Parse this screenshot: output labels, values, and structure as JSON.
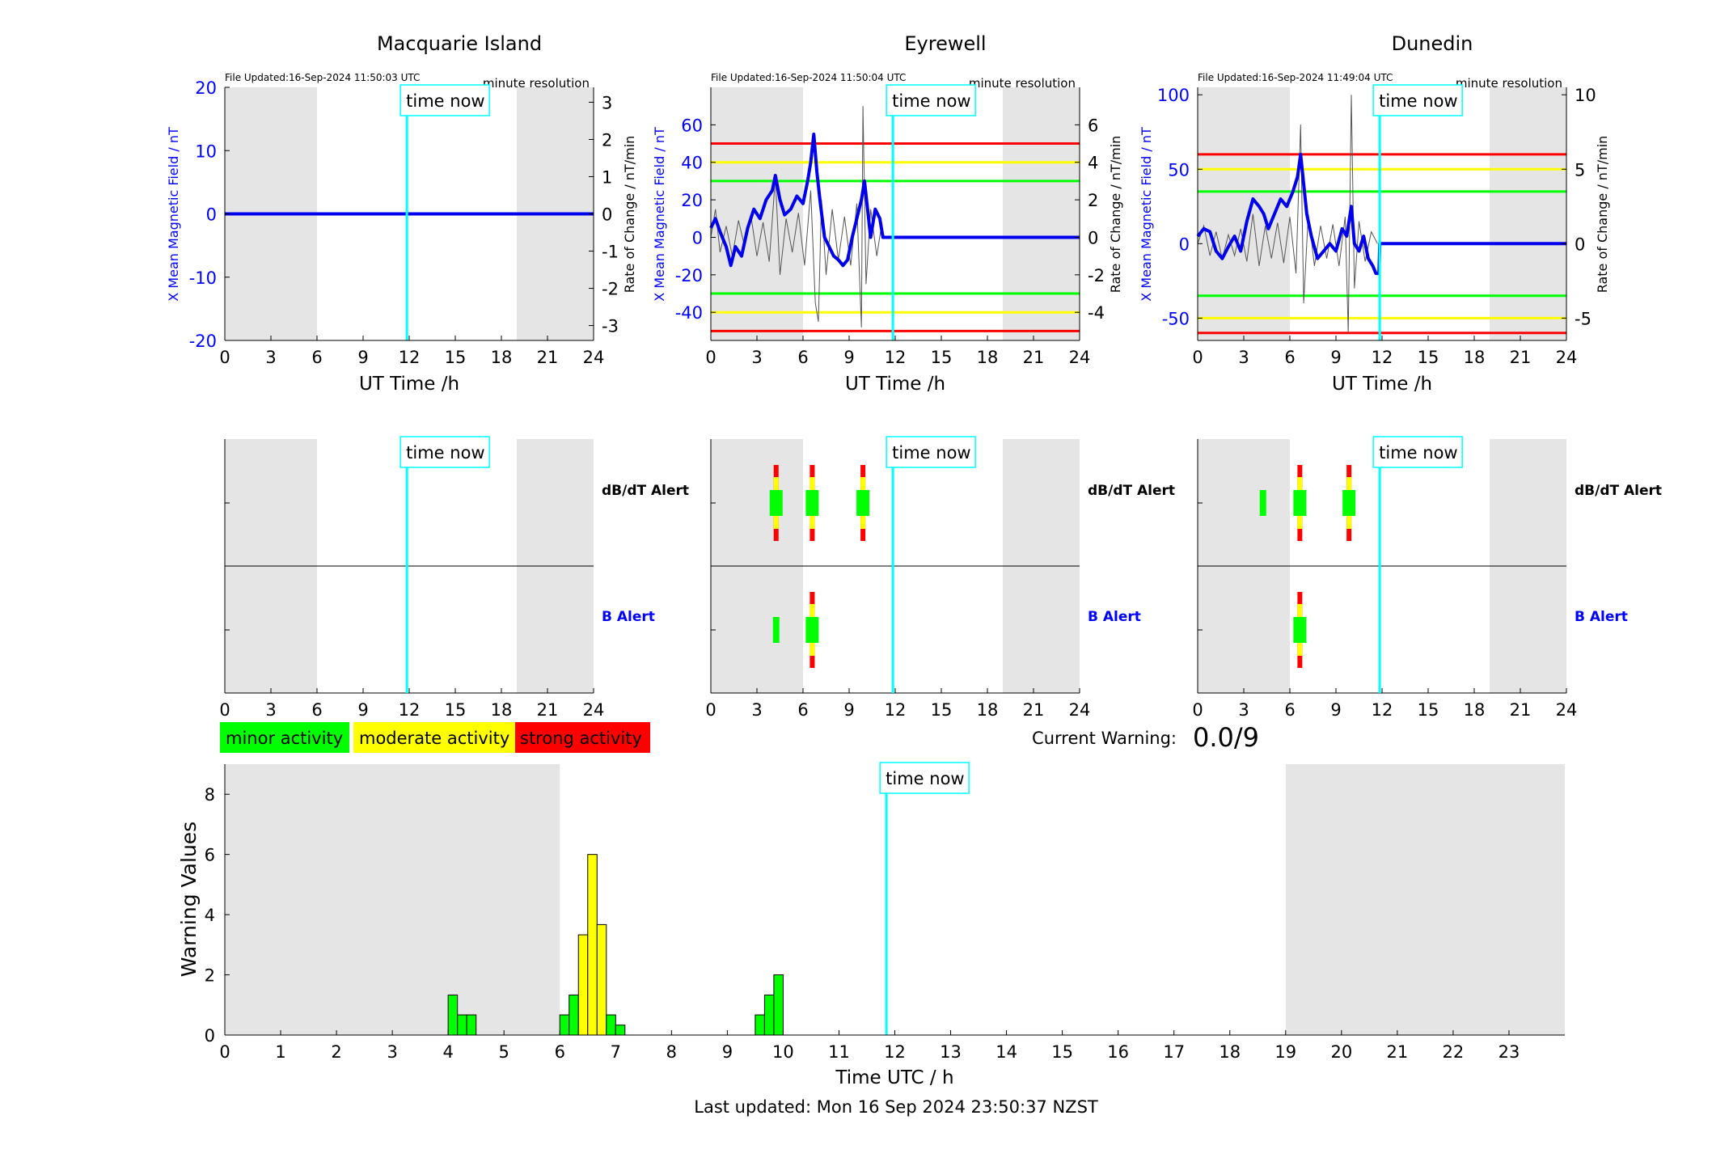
{
  "stations": [
    {
      "name": "Macquarie Island",
      "file_updated": "File Updated:16-Sep-2024 11:50:03 UTC",
      "resolution": "minute resolution",
      "ylim": [
        -20,
        20
      ],
      "yticks": [
        -20,
        -10,
        0,
        10,
        20
      ],
      "ylim_right": [
        -3.4,
        3.4
      ],
      "yticks_right": [
        -3,
        -2,
        -1,
        0,
        1,
        2,
        3
      ],
      "thresholds": [],
      "mean_field": [
        [
          0,
          0
        ],
        [
          24,
          0
        ]
      ],
      "rate_of_change": [],
      "dbdt_alerts": [],
      "b_alerts": []
    },
    {
      "name": "Eyrewell",
      "file_updated": "File Updated:16-Sep-2024 11:50:04 UTC",
      "resolution": "minute resolution",
      "ylim": [
        -55,
        80
      ],
      "yticks": [
        -40,
        -20,
        0,
        20,
        40,
        60
      ],
      "ylim_right": [
        -5.5,
        8
      ],
      "yticks_right": [
        -4,
        -2,
        0,
        2,
        4,
        6
      ],
      "thresholds": [
        {
          "value": 50,
          "color": "#ff0000"
        },
        {
          "value": 40,
          "color": "#ffff00"
        },
        {
          "value": 30,
          "color": "#00ff00"
        },
        {
          "value": -30,
          "color": "#00ff00"
        },
        {
          "value": -40,
          "color": "#ffff00"
        },
        {
          "value": -50,
          "color": "#ff0000"
        }
      ],
      "mean_field": [
        [
          0,
          5
        ],
        [
          0.3,
          10
        ],
        [
          0.6,
          3
        ],
        [
          1,
          -5
        ],
        [
          1.3,
          -15
        ],
        [
          1.6,
          -5
        ],
        [
          2,
          -10
        ],
        [
          2.4,
          5
        ],
        [
          2.8,
          15
        ],
        [
          3.2,
          10
        ],
        [
          3.6,
          20
        ],
        [
          4,
          25
        ],
        [
          4.2,
          33
        ],
        [
          4.5,
          20
        ],
        [
          4.8,
          12
        ],
        [
          5.2,
          15
        ],
        [
          5.6,
          22
        ],
        [
          6,
          18
        ],
        [
          6.3,
          30
        ],
        [
          6.5,
          40
        ],
        [
          6.7,
          55
        ],
        [
          6.9,
          35
        ],
        [
          7.1,
          20
        ],
        [
          7.4,
          0
        ],
        [
          7.7,
          -5
        ],
        [
          8,
          -10
        ],
        [
          8.3,
          -12
        ],
        [
          8.6,
          -15
        ],
        [
          8.9,
          -12
        ],
        [
          9.2,
          0
        ],
        [
          9.5,
          10
        ],
        [
          9.8,
          20
        ],
        [
          10,
          30
        ],
        [
          10.2,
          15
        ],
        [
          10.4,
          0
        ],
        [
          10.7,
          15
        ],
        [
          11,
          10
        ],
        [
          11.2,
          0
        ],
        [
          11.8,
          0
        ],
        [
          24,
          0
        ]
      ],
      "rate_of_change": [
        [
          0,
          0
        ],
        [
          0.3,
          1.5
        ],
        [
          0.6,
          -0.8
        ],
        [
          1,
          0.6
        ],
        [
          1.4,
          -1
        ],
        [
          1.8,
          0.9
        ],
        [
          2.2,
          -0.5
        ],
        [
          2.6,
          1.2
        ],
        [
          3,
          -1
        ],
        [
          3.4,
          0.8
        ],
        [
          3.8,
          -1.3
        ],
        [
          4.2,
          3.2
        ],
        [
          4.5,
          -2
        ],
        [
          4.9,
          1
        ],
        [
          5.3,
          -0.8
        ],
        [
          5.7,
          1.3
        ],
        [
          6.1,
          -1.5
        ],
        [
          6.5,
          2.5
        ],
        [
          6.8,
          -3.5
        ],
        [
          7,
          -4.5
        ],
        [
          7.2,
          2
        ],
        [
          7.5,
          -2
        ],
        [
          7.9,
          1.5
        ],
        [
          8.3,
          -1.2
        ],
        [
          8.7,
          1.1
        ],
        [
          9.1,
          -1.5
        ],
        [
          9.5,
          1.8
        ],
        [
          9.8,
          -4.8
        ],
        [
          9.9,
          7
        ],
        [
          10.1,
          -2.5
        ],
        [
          10.4,
          1.5
        ],
        [
          10.8,
          -1
        ],
        [
          11.1,
          0.6
        ],
        [
          11.3,
          0
        ]
      ],
      "dbdt_alerts": [
        {
          "t": 4.25,
          "level": "strong"
        },
        {
          "t": 6.6,
          "level": "strong"
        },
        {
          "t": 9.9,
          "level": "strong"
        }
      ],
      "b_alerts": [
        {
          "t": 4.25,
          "level": "minor"
        },
        {
          "t": 6.6,
          "level": "strong"
        }
      ]
    },
    {
      "name": "Dunedin",
      "file_updated": "File Updated:16-Sep-2024 11:49:04 UTC",
      "resolution": "minute resolution",
      "ylim": [
        -65,
        105
      ],
      "yticks": [
        -50,
        0,
        50,
        100
      ],
      "ylim_right": [
        -6.5,
        10.5
      ],
      "yticks_right": [
        -5,
        0,
        5,
        10
      ],
      "thresholds": [
        {
          "value": 60,
          "color": "#ff0000"
        },
        {
          "value": 50,
          "color": "#ffff00"
        },
        {
          "value": 35,
          "color": "#00ff00"
        },
        {
          "value": -35,
          "color": "#00ff00"
        },
        {
          "value": -50,
          "color": "#ffff00"
        },
        {
          "value": -60,
          "color": "#ff0000"
        }
      ],
      "mean_field": [
        [
          0,
          5
        ],
        [
          0.4,
          10
        ],
        [
          0.8,
          8
        ],
        [
          1.2,
          -5
        ],
        [
          1.6,
          -10
        ],
        [
          2,
          -2
        ],
        [
          2.4,
          5
        ],
        [
          2.8,
          -5
        ],
        [
          3.2,
          15
        ],
        [
          3.6,
          30
        ],
        [
          4,
          25
        ],
        [
          4.3,
          20
        ],
        [
          4.6,
          10
        ],
        [
          5,
          20
        ],
        [
          5.4,
          30
        ],
        [
          5.8,
          25
        ],
        [
          6.2,
          35
        ],
        [
          6.5,
          45
        ],
        [
          6.7,
          60
        ],
        [
          6.9,
          40
        ],
        [
          7.1,
          20
        ],
        [
          7.4,
          5
        ],
        [
          7.8,
          -10
        ],
        [
          8.2,
          -5
        ],
        [
          8.6,
          0
        ],
        [
          9,
          -5
        ],
        [
          9.4,
          10
        ],
        [
          9.7,
          5
        ],
        [
          10,
          25
        ],
        [
          10.2,
          0
        ],
        [
          10.5,
          -5
        ],
        [
          10.8,
          5
        ],
        [
          11.1,
          -10
        ],
        [
          11.4,
          -15
        ],
        [
          11.6,
          -20
        ],
        [
          11.8,
          -20
        ],
        [
          11.85,
          0
        ],
        [
          24,
          0
        ]
      ],
      "rate_of_change": [
        [
          0,
          0
        ],
        [
          0.4,
          1.2
        ],
        [
          0.8,
          -0.8
        ],
        [
          1.2,
          0.8
        ],
        [
          1.6,
          -1
        ],
        [
          2,
          0.6
        ],
        [
          2.4,
          -0.8
        ],
        [
          2.8,
          1
        ],
        [
          3.2,
          -1.2
        ],
        [
          3.6,
          2
        ],
        [
          4,
          -1.5
        ],
        [
          4.4,
          1.2
        ],
        [
          4.8,
          -1
        ],
        [
          5.2,
          1.4
        ],
        [
          5.6,
          -1.3
        ],
        [
          6,
          1.8
        ],
        [
          6.4,
          -2
        ],
        [
          6.7,
          8
        ],
        [
          6.9,
          -4
        ],
        [
          7.2,
          2
        ],
        [
          7.6,
          -1.5
        ],
        [
          8,
          1.2
        ],
        [
          8.4,
          -1
        ],
        [
          8.8,
          1.3
        ],
        [
          9.2,
          -1.5
        ],
        [
          9.6,
          1.8
        ],
        [
          9.8,
          -6
        ],
        [
          10,
          10
        ],
        [
          10.2,
          -3
        ],
        [
          10.5,
          1.5
        ],
        [
          10.9,
          -1.2
        ],
        [
          11.3,
          0.8
        ],
        [
          11.7,
          0
        ]
      ],
      "dbdt_alerts": [
        {
          "t": 4.25,
          "level": "minor"
        },
        {
          "t": 6.65,
          "level": "strong"
        },
        {
          "t": 9.85,
          "level": "strong"
        }
      ],
      "b_alerts": [
        {
          "t": 6.65,
          "level": "strong"
        }
      ]
    }
  ],
  "top_xlabel": "UT Time /h",
  "xticks_top": [
    0,
    3,
    6,
    9,
    12,
    15,
    18,
    21,
    24
  ],
  "left_ylabel": "X Mean Magnetic Field / nT",
  "right_ylabel": "Rate of Change / nT/min",
  "time_now_label": "time now",
  "time_now_utc": 11.85,
  "night_shading": [
    [
      0,
      6
    ],
    [
      19,
      24
    ]
  ],
  "alert_labels": {
    "dbdt": "dB/dT Alert",
    "b": "B Alert"
  },
  "legend": [
    {
      "label": "minor activity",
      "color": "#00ff00"
    },
    {
      "label": "moderate activity",
      "color": "#ffff00"
    },
    {
      "label": "strong activity",
      "color": "#ff0000"
    }
  ],
  "current_warning_label": "Current Warning:",
  "current_warning_value": "0.0/9",
  "chart_data": {
    "type": "bar",
    "xlabel": "Time UTC / h",
    "ylabel": "Warning Values",
    "xlim": [
      0,
      24
    ],
    "ylim": [
      0,
      9
    ],
    "xticks": [
      0,
      1,
      2,
      3,
      4,
      5,
      6,
      7,
      8,
      9,
      10,
      11,
      12,
      13,
      14,
      15,
      16,
      17,
      18,
      19,
      20,
      21,
      22,
      23
    ],
    "yticks": [
      0,
      2,
      4,
      6,
      8
    ],
    "night_shading": [
      [
        0,
        6
      ],
      [
        19,
        24
      ]
    ],
    "bin_width_h": 0.1667,
    "bars": [
      {
        "t": 4.0,
        "value": 1.33,
        "level": "minor"
      },
      {
        "t": 4.1667,
        "value": 0.67,
        "level": "minor"
      },
      {
        "t": 4.3333,
        "value": 0.67,
        "level": "minor"
      },
      {
        "t": 6.0,
        "value": 0.67,
        "level": "minor"
      },
      {
        "t": 6.1667,
        "value": 1.33,
        "level": "minor"
      },
      {
        "t": 6.3333,
        "value": 3.33,
        "level": "moderate"
      },
      {
        "t": 6.5,
        "value": 6.0,
        "level": "moderate"
      },
      {
        "t": 6.6667,
        "value": 3.67,
        "level": "moderate"
      },
      {
        "t": 6.8333,
        "value": 0.67,
        "level": "minor"
      },
      {
        "t": 7.0,
        "value": 0.33,
        "level": "minor"
      },
      {
        "t": 9.5,
        "value": 0.67,
        "level": "minor"
      },
      {
        "t": 9.6667,
        "value": 1.33,
        "level": "minor"
      },
      {
        "t": 9.8333,
        "value": 2.0,
        "level": "minor"
      }
    ]
  },
  "last_updated": "Last updated: Mon 16 Sep 2024 23:50:37 NZST",
  "colors": {
    "minor": "#00ff00",
    "moderate": "#ffff00",
    "strong": "#ff0000",
    "night": "#e5e5e5",
    "time_now": "#00ffff",
    "mean_field": "#0000ee",
    "axis_blue": "#0000ff",
    "rate": "#555555"
  }
}
